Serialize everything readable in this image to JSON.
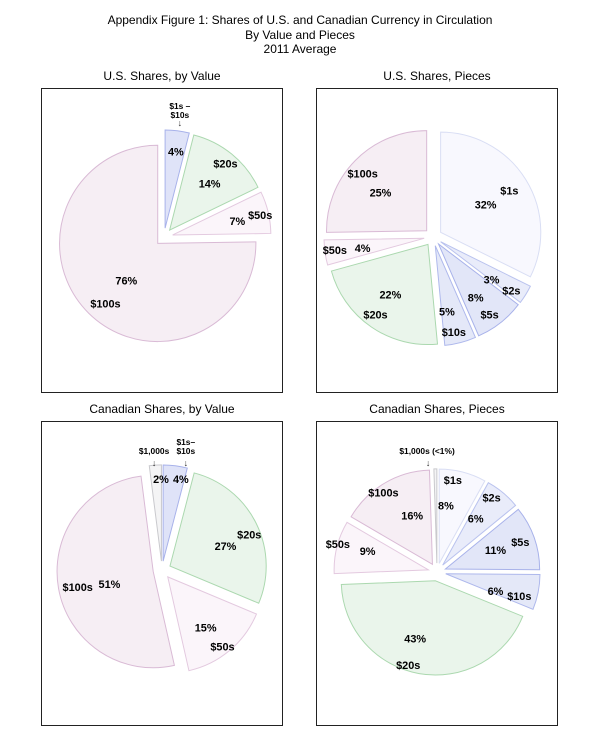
{
  "header": {
    "line1": "Appendix Figure 1: Shares of U.S. and Canadian Currency in Circulation",
    "line2": "By Value and Pieces",
    "line3": "2011 Average"
  },
  "chart_data": [
    {
      "type": "pie",
      "title": "U.S. Shares, by Value",
      "legend_position": "none",
      "start_angle_deg": 0,
      "direction": "clockwise",
      "center": [
        123,
        149
      ],
      "radius": 99,
      "explode": 9,
      "slices": [
        {
          "label": "$1s – $10s",
          "value": 4,
          "pct_text": "4%",
          "fill": "#dfe3f8",
          "stroke": "#a8b2ea",
          "pct_pos": [
            135,
            64
          ],
          "callout": {
            "lines": [
              "$1s –",
              "$10s"
            ],
            "pos": [
              139,
              17
            ],
            "arrow_glyph": "↓",
            "arrow_pos": [
              139,
              34
            ]
          }
        },
        {
          "label": "$20s",
          "value": 14,
          "pct_text": "14%",
          "fill": "#eaf5eb",
          "stroke": "#abd8af",
          "label_pos": [
            185,
            76
          ],
          "pct_pos": [
            169,
            96
          ]
        },
        {
          "label": "$50s",
          "value": 7,
          "pct_text": "7%",
          "fill": "#fbf5fa",
          "stroke": "#e3c9df",
          "label_pos": [
            220,
            128
          ],
          "pct_pos": [
            197,
            134
          ]
        },
        {
          "label": "$100s",
          "value": 76,
          "pct_text": "76%",
          "fill": "#f6eef4",
          "stroke": "#d9bad5",
          "label_pos": [
            64,
            217
          ],
          "pct_pos": [
            85,
            194
          ]
        }
      ]
    },
    {
      "type": "pie",
      "title": "U.S. Shares, Pieces",
      "legend_position": "none",
      "start_angle_deg": 0,
      "direction": "clockwise",
      "center": [
        117,
        149
      ],
      "radius": 101,
      "explode": 9,
      "slices": [
        {
          "label": "$1s",
          "value": 32,
          "pct_text": "32%",
          "fill": "#f8f8fe",
          "stroke": "#d9def4",
          "label_pos": [
            194,
            103
          ],
          "pct_pos": [
            170,
            117
          ]
        },
        {
          "label": "$2s",
          "value": 3,
          "pct_text": "3%",
          "fill": "#e9ecfa",
          "stroke": "#b9c2ee",
          "label_pos": [
            196,
            204
          ],
          "pct_pos": [
            176,
            193
          ]
        },
        {
          "label": "$5s",
          "value": 8,
          "pct_text": "8%",
          "fill": "#e2e6f8",
          "stroke": "#a8b2ea",
          "label_pos": [
            174,
            228
          ],
          "pct_pos": [
            160,
            211
          ]
        },
        {
          "label": "$10s",
          "value": 5,
          "pct_text": "5%",
          "fill": "#e4e8f8",
          "stroke": "#aeb8ec",
          "label_pos": [
            138,
            246
          ],
          "pct_pos": [
            131,
            225
          ]
        },
        {
          "label": "$20s",
          "value": 22,
          "pct_text": "22%",
          "fill": "#eaf5eb",
          "stroke": "#abd8af",
          "label_pos": [
            59,
            228
          ],
          "pct_pos": [
            74,
            208
          ]
        },
        {
          "label": "$50s",
          "value": 4,
          "pct_text": "4%",
          "fill": "#fbf5fa",
          "stroke": "#e3c9df",
          "label_pos": [
            18,
            163
          ],
          "pct_pos": [
            46,
            161
          ]
        },
        {
          "label": "$100s",
          "value": 25,
          "pct_text": "25%",
          "fill": "#f6eef4",
          "stroke": "#d9bad5",
          "label_pos": [
            46,
            86
          ],
          "pct_pos": [
            64,
            105
          ]
        }
      ]
    },
    {
      "type": "pie",
      "title": "Canadian Shares, by Value",
      "legend_position": "none",
      "start_angle_deg": 0,
      "direction": "clockwise",
      "center": [
        121,
        149
      ],
      "radius": 97,
      "explode": 9,
      "slices": [
        {
          "label": "$1s–$10s",
          "value": 4,
          "pct_text": "4%",
          "fill": "#dfe3f8",
          "stroke": "#a8b2ea",
          "pct_pos": [
            140,
            58
          ],
          "callout": {
            "lines": [
              "$1s–",
              "$10s"
            ],
            "pos": [
              145,
              20
            ],
            "arrow_glyph": "↓",
            "arrow_pos": [
              145,
              41
            ]
          }
        },
        {
          "label": "$20s",
          "value": 27,
          "pct_text": "27%",
          "fill": "#eaf5eb",
          "stroke": "#abd8af",
          "label_pos": [
            209,
            114
          ],
          "pct_pos": [
            185,
            126
          ]
        },
        {
          "label": "$50s",
          "value": 15,
          "pct_text": "15%",
          "fill": "#fbf5fa",
          "stroke": "#e3c9df",
          "label_pos": [
            182,
            227
          ],
          "pct_pos": [
            165,
            208
          ]
        },
        {
          "label": "$100s",
          "value": 51,
          "pct_text": "51%",
          "fill": "#f6eef4",
          "stroke": "#d9bad5",
          "label_pos": [
            36,
            167
          ],
          "pct_pos": [
            68,
            164
          ]
        },
        {
          "label": "$1,000s",
          "value": 2,
          "pct_text": "2%",
          "fill": "#f4f4f5",
          "stroke": "#c9c9cd",
          "pct_pos": [
            120,
            58
          ],
          "callout": {
            "lines": [
              "$1,000s"
            ],
            "pos": [
              113,
              29
            ],
            "arrow_glyph": "↓",
            "arrow_pos": [
              113,
              41
            ]
          }
        }
      ]
    },
    {
      "type": "pie",
      "title": "Canadian Shares, Pieces",
      "legend_position": "none",
      "start_angle_deg": 0,
      "direction": "clockwise",
      "center": [
        121,
        151
      ],
      "radius": 95,
      "explode": 9,
      "slices": [
        {
          "label": "$1s",
          "value": 8,
          "pct_text": "8%",
          "fill": "#f8f8fe",
          "stroke": "#d9def4",
          "label_pos": [
            137,
            59
          ],
          "pct_pos": [
            130,
            85
          ]
        },
        {
          "label": "$2s",
          "value": 6,
          "pct_text": "6%",
          "fill": "#e9ecfa",
          "stroke": "#b9c2ee",
          "label_pos": [
            176,
            77
          ],
          "pct_pos": [
            160,
            98
          ]
        },
        {
          "label": "$5s",
          "value": 11,
          "pct_text": "11%",
          "fill": "#e2e6f8",
          "stroke": "#a8b2ea",
          "label_pos": [
            205,
            122
          ],
          "pct_pos": [
            180,
            130
          ]
        },
        {
          "label": "$10s",
          "value": 6,
          "pct_text": "6%",
          "fill": "#e4e8f8",
          "stroke": "#aeb8ec",
          "label_pos": [
            204,
            176
          ],
          "pct_pos": [
            180,
            171
          ]
        },
        {
          "label": "$20s",
          "value": 43,
          "pct_text": "43%",
          "fill": "#eaf5eb",
          "stroke": "#abd8af",
          "label_pos": [
            92,
            246
          ],
          "pct_pos": [
            99,
            219
          ]
        },
        {
          "label": "$50s",
          "value": 9,
          "pct_text": "9%",
          "fill": "#fbf5fa",
          "stroke": "#e3c9df",
          "label_pos": [
            21,
            124
          ],
          "pct_pos": [
            51,
            131
          ]
        },
        {
          "label": "$100s",
          "value": 16,
          "pct_text": "16%",
          "fill": "#f6eef4",
          "stroke": "#d9bad5",
          "label_pos": [
            67,
            72
          ],
          "pct_pos": [
            96,
            95
          ]
        },
        {
          "label": "$1,000s",
          "value": 0.5,
          "pct_text": "<1%",
          "fill": "#f4f4f5",
          "stroke": "#c9c9cd",
          "callout": {
            "lines": [
              "$1,000s (<1%)"
            ],
            "pos": [
              111,
              29
            ],
            "arrow_glyph": "↓",
            "arrow_pos": [
              112,
              41
            ]
          }
        }
      ]
    }
  ]
}
